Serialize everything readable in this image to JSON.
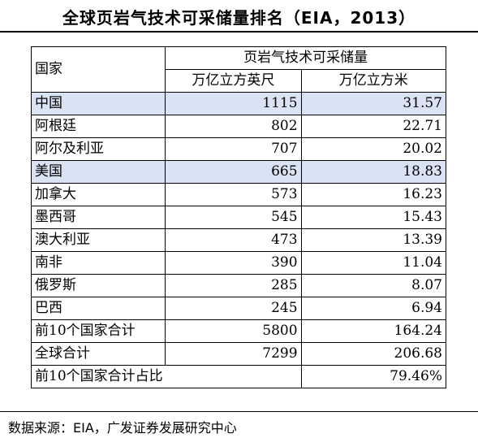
{
  "title": "全球页岩气技术可采储量排名（EIA，2013）",
  "table": {
    "col_country": "国家",
    "group_header": "页岩气技术可采储量",
    "col_unit1": "万亿立方英尺",
    "col_unit2": "万亿立方米",
    "rows": [
      {
        "name": "中国",
        "v1": "1115",
        "v2": "31.57"
      },
      {
        "name": "阿根廷",
        "v1": "802",
        "v2": "22.71"
      },
      {
        "name": "阿尔及利亚",
        "v1": "707",
        "v2": "20.02"
      },
      {
        "name": "美国",
        "v1": "665",
        "v2": "18.83"
      },
      {
        "name": "加拿大",
        "v1": "573",
        "v2": "16.23"
      },
      {
        "name": "墨西哥",
        "v1": "545",
        "v2": "15.43"
      },
      {
        "name": "澳大利亚",
        "v1": "473",
        "v2": "13.39"
      },
      {
        "name": "南非",
        "v1": "390",
        "v2": "11.04"
      },
      {
        "name": "俄罗斯",
        "v1": "285",
        "v2": "8.07"
      },
      {
        "name": "巴西",
        "v1": "245",
        "v2": "6.94"
      },
      {
        "name": "前10个国家合计",
        "v1": "5800",
        "v2": "164.24"
      },
      {
        "name": "全球合计",
        "v1": "7299",
        "v2": "206.68"
      }
    ],
    "ratio_row": {
      "name": "前10个国家合计占比",
      "v1": "",
      "v2": "79.46%"
    }
  },
  "source": "数据来源：EIA，广发证券发展研究中心",
  "colors": {
    "highlight": "#d9e3f3"
  }
}
